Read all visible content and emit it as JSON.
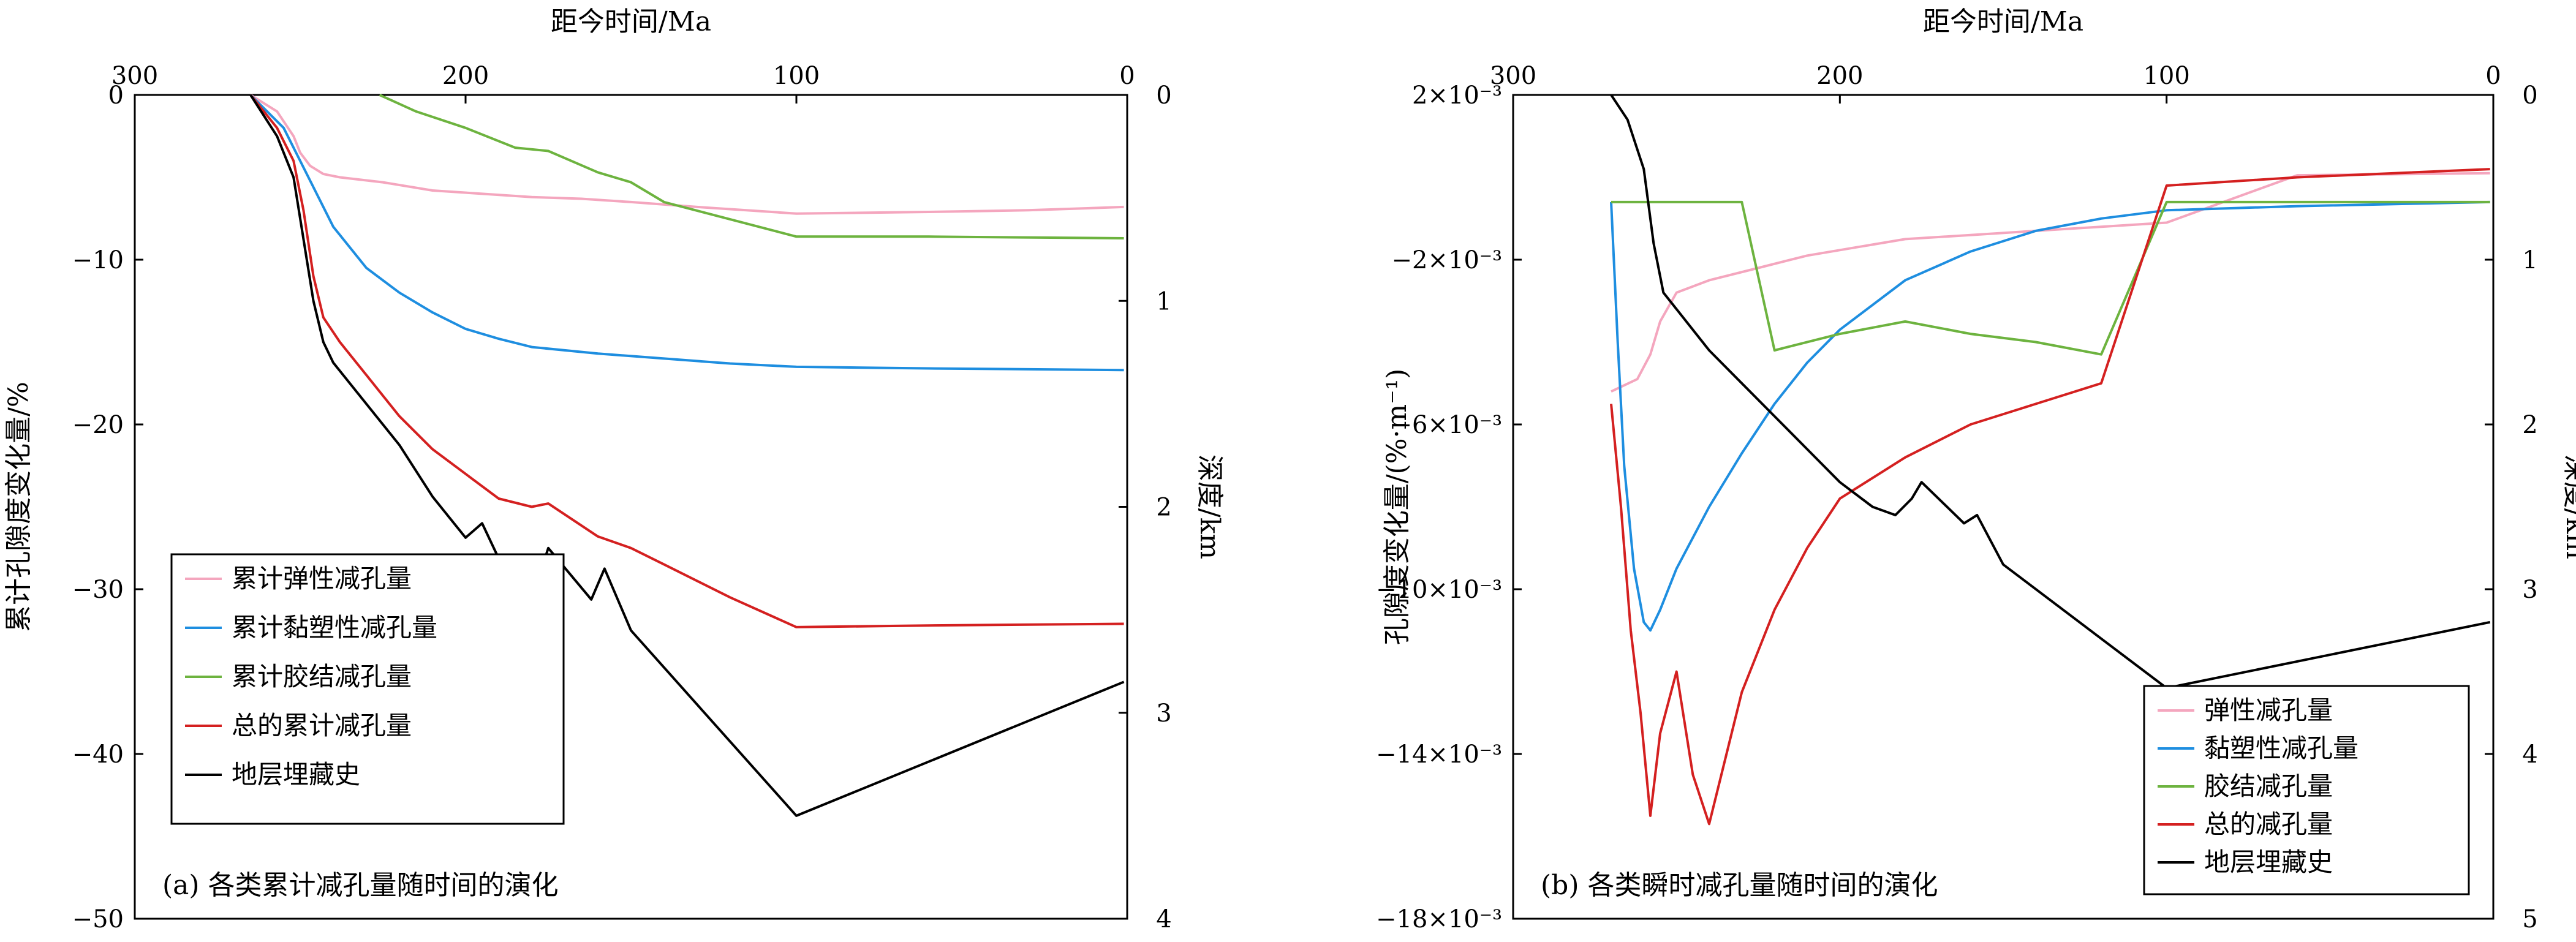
{
  "chart_data": [
    {
      "type": "line",
      "caption": "(a) 各类累计减孔量随时间的演化",
      "xlabel": "距今时间/Ma",
      "ylabel": "累计孔隙度变化量/%",
      "y2label": "深度/km",
      "xlim": [
        300,
        0
      ],
      "ylim": [
        -50,
        0
      ],
      "y2lim": [
        4,
        0
      ],
      "xticks": [
        "300",
        "200",
        "100",
        "0"
      ],
      "yticks": [
        "0",
        "−10",
        "−20",
        "−30",
        "−40",
        "−50"
      ],
      "y2ticks": [
        "0",
        "1",
        "2",
        "3",
        "4"
      ],
      "legend_position": "bottom-left",
      "series": [
        {
          "name": "累计弹性减孔量",
          "color": "#f4a6be",
          "axis": "left",
          "x": [
            265,
            257,
            252,
            250,
            247,
            243,
            238,
            225,
            210,
            195,
            180,
            165,
            150,
            130,
            100,
            60,
            30,
            1
          ],
          "y": [
            0,
            -1,
            -2.5,
            -3.5,
            -4.3,
            -4.8,
            -5,
            -5.3,
            -5.8,
            -6,
            -6.2,
            -6.3,
            -6.5,
            -6.8,
            -7.2,
            -7.1,
            -7,
            -6.8
          ]
        },
        {
          "name": "累计黏塑性减孔量",
          "color": "#1e8ee0",
          "axis": "left",
          "x": [
            265,
            255,
            250,
            245,
            240,
            230,
            220,
            210,
            200,
            190,
            180,
            160,
            140,
            120,
            100,
            60,
            1
          ],
          "y": [
            0,
            -2,
            -4,
            -6,
            -8,
            -10.5,
            -12,
            -13.2,
            -14.2,
            -14.8,
            -15.3,
            -15.7,
            -16,
            -16.3,
            -16.5,
            -16.6,
            -16.7
          ]
        },
        {
          "name": "累计胶结减孔量",
          "color": "#6db33f",
          "axis": "left",
          "x": [
            226,
            215,
            200,
            185,
            175,
            160,
            150,
            140,
            100,
            60,
            1
          ],
          "y": [
            0,
            -1,
            -2,
            -3.2,
            -3.4,
            -4.7,
            -5.3,
            -6.5,
            -8.6,
            -8.6,
            -8.7
          ]
        },
        {
          "name": "总的累计减孔量",
          "color": "#d42020",
          "axis": "left",
          "x": [
            265,
            257,
            252,
            249,
            246,
            243,
            238,
            230,
            220,
            210,
            200,
            190,
            180,
            175,
            160,
            150,
            140,
            120,
            100,
            60,
            1
          ],
          "y": [
            0,
            -2,
            -4,
            -7,
            -11,
            -13.5,
            -15,
            -17,
            -19.5,
            -21.5,
            -23,
            -24.5,
            -25,
            -24.8,
            -26.8,
            -27.5,
            -28.5,
            -30.5,
            -32.3,
            -32.2,
            -32.1
          ]
        },
        {
          "name": "地层埋藏史",
          "color": "#000000",
          "axis": "right",
          "x": [
            265,
            257,
            252,
            249,
            246,
            243,
            240,
            230,
            220,
            210,
            200,
            195,
            190,
            180,
            175,
            162,
            158,
            150,
            100,
            1
          ],
          "y": [
            0,
            0.2,
            0.4,
            0.7,
            1.0,
            1.2,
            1.3,
            1.5,
            1.7,
            1.95,
            2.15,
            2.08,
            2.25,
            2.45,
            2.2,
            2.45,
            2.3,
            2.6,
            3.5,
            2.85
          ]
        }
      ]
    },
    {
      "type": "line",
      "caption": "(b) 各类瞬时减孔量随时间的演化",
      "xlabel": "距今时间/Ma",
      "ylabel": "孔隙度变化量/(%·m⁻¹)",
      "y2label": "深度/km",
      "xlim": [
        300,
        0
      ],
      "ylim": [
        -0.018,
        0.002
      ],
      "y2lim": [
        5,
        0
      ],
      "xticks": [
        "300",
        "200",
        "100",
        "0"
      ],
      "yticks": [
        "2×10⁻³",
        "−2×10⁻³",
        "−6×10⁻³",
        "−10×10⁻³",
        "−14×10⁻³",
        "−18×10⁻³"
      ],
      "y2ticks": [
        "0",
        "1",
        "2",
        "3",
        "4",
        "5"
      ],
      "legend_position": "bottom-right",
      "series": [
        {
          "name": "弹性减孔量",
          "color": "#f4a6be",
          "axis": "left",
          "x": [
            270,
            262,
            258,
            255,
            250,
            240,
            225,
            210,
            195,
            180,
            160,
            140,
            120,
            100,
            60,
            1
          ],
          "y": [
            -0.0052,
            -0.0049,
            -0.0043,
            -0.0035,
            -0.0028,
            -0.0025,
            -0.0022,
            -0.0019,
            -0.0017,
            -0.0015,
            -0.0014,
            -0.0013,
            -0.0012,
            -0.0011,
            5e-05,
            0.0001
          ]
        },
        {
          "name": "黏塑性减孔量",
          "color": "#1e8ee0",
          "axis": "left",
          "x": [
            270,
            268,
            266,
            263,
            260,
            258,
            255,
            250,
            240,
            230,
            220,
            210,
            200,
            180,
            160,
            140,
            120,
            100,
            60,
            1
          ],
          "y": [
            -0.0006,
            -0.004,
            -0.007,
            -0.0095,
            -0.0108,
            -0.011,
            -0.0105,
            -0.0095,
            -0.008,
            -0.0067,
            -0.0055,
            -0.0045,
            -0.0037,
            -0.0025,
            -0.0018,
            -0.0013,
            -0.001,
            -0.0008,
            -0.0007,
            -0.0006
          ]
        },
        {
          "name": "胶结减孔量",
          "color": "#6db33f",
          "axis": "left",
          "x": [
            270,
            230,
            220,
            200,
            180,
            160,
            140,
            120,
            100,
            60,
            1
          ],
          "y": [
            -0.0006,
            -0.0006,
            -0.0042,
            -0.0038,
            -0.0035,
            -0.0038,
            -0.004,
            -0.0043,
            -0.0006,
            -0.0006,
            -0.0006
          ]
        },
        {
          "name": "总的减孔量",
          "color": "#d42020",
          "axis": "left",
          "x": [
            270,
            267,
            264,
            261,
            258,
            255,
            250,
            245,
            240,
            230,
            220,
            210,
            200,
            180,
            160,
            140,
            120,
            100,
            60,
            1
          ],
          "y": [
            -0.0055,
            -0.008,
            -0.011,
            -0.013,
            -0.0155,
            -0.0135,
            -0.012,
            -0.0145,
            -0.0157,
            -0.0125,
            -0.0105,
            -0.009,
            -0.0078,
            -0.0068,
            -0.006,
            -0.0055,
            -0.005,
            -0.0002,
            0.0,
            0.0002
          ]
        },
        {
          "name": "地层埋藏史",
          "color": "#000000",
          "axis": "right",
          "x": [
            270,
            265,
            260,
            257,
            254,
            250,
            240,
            230,
            220,
            210,
            200,
            190,
            183,
            178,
            175,
            162,
            158,
            150,
            100,
            1
          ],
          "y": [
            0,
            0.15,
            0.45,
            0.9,
            1.2,
            1.3,
            1.55,
            1.75,
            1.95,
            2.15,
            2.35,
            2.5,
            2.55,
            2.45,
            2.35,
            2.6,
            2.55,
            2.85,
            3.6,
            3.2
          ]
        }
      ]
    }
  ]
}
